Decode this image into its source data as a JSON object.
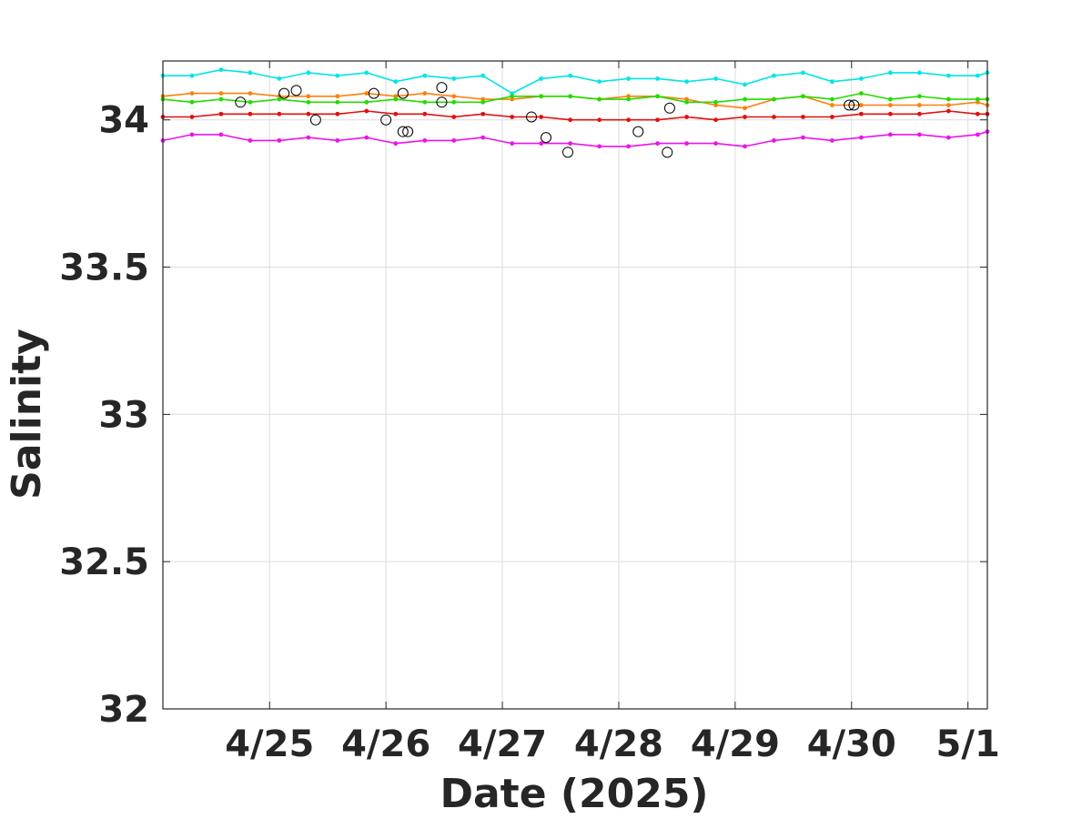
{
  "chart_data": {
    "type": "line",
    "title": "",
    "xlabel": "Date (2025)",
    "ylabel": "Salinity",
    "x_range": [
      "2025-04-24 02:00",
      "2025-05-01 04:00"
    ],
    "ylim": [
      32,
      34.2
    ],
    "grid": true,
    "x_ticks": [
      {
        "x": "2025-04-25",
        "label": "4/25"
      },
      {
        "x": "2025-04-26",
        "label": "4/26"
      },
      {
        "x": "2025-04-27",
        "label": "4/27"
      },
      {
        "x": "2025-04-28",
        "label": "4/28"
      },
      {
        "x": "2025-04-29",
        "label": "4/29"
      },
      {
        "x": "2025-04-30",
        "label": "4/30"
      },
      {
        "x": "2025-05-01",
        "label": "5/1"
      }
    ],
    "y_ticks": [
      {
        "y": 32,
        "label": "32"
      },
      {
        "y": 32.5,
        "label": "32.5"
      },
      {
        "y": 33,
        "label": "33"
      },
      {
        "y": 33.5,
        "label": "33.5"
      },
      {
        "y": 34,
        "label": "34"
      }
    ],
    "series": [
      {
        "color": "#00e5e5",
        "x": [
          "2025-04-24 02:00",
          "2025-04-24 08:00",
          "2025-04-24 14:00",
          "2025-04-24 20:00",
          "2025-04-25 02:00",
          "2025-04-25 08:00",
          "2025-04-25 14:00",
          "2025-04-25 20:00",
          "2025-04-26 02:00",
          "2025-04-26 08:00",
          "2025-04-26 14:00",
          "2025-04-26 20:00",
          "2025-04-27 02:00",
          "2025-04-27 08:00",
          "2025-04-27 14:00",
          "2025-04-27 20:00",
          "2025-04-28 02:00",
          "2025-04-28 08:00",
          "2025-04-28 14:00",
          "2025-04-28 20:00",
          "2025-04-29 02:00",
          "2025-04-29 08:00",
          "2025-04-29 14:00",
          "2025-04-29 20:00",
          "2025-04-30 02:00",
          "2025-04-30 08:00",
          "2025-04-30 14:00",
          "2025-04-30 20:00",
          "2025-05-01 02:00",
          "2025-05-01 04:00"
        ],
        "values": [
          34.15,
          34.15,
          34.17,
          34.16,
          34.14,
          34.16,
          34.15,
          34.16,
          34.13,
          34.15,
          34.14,
          34.15,
          34.09,
          34.14,
          34.15,
          34.13,
          34.14,
          34.14,
          34.13,
          34.14,
          34.12,
          34.15,
          34.16,
          34.13,
          34.14,
          34.16,
          34.16,
          34.15,
          34.15,
          34.16
        ]
      },
      {
        "color": "#ff7f0e",
        "x": [
          "2025-04-24 02:00",
          "2025-04-24 08:00",
          "2025-04-24 14:00",
          "2025-04-24 20:00",
          "2025-04-25 02:00",
          "2025-04-25 08:00",
          "2025-04-25 14:00",
          "2025-04-25 20:00",
          "2025-04-26 02:00",
          "2025-04-26 08:00",
          "2025-04-26 14:00",
          "2025-04-26 20:00",
          "2025-04-27 02:00",
          "2025-04-27 08:00",
          "2025-04-27 14:00",
          "2025-04-27 20:00",
          "2025-04-28 02:00",
          "2025-04-28 08:00",
          "2025-04-28 14:00",
          "2025-04-28 20:00",
          "2025-04-29 02:00",
          "2025-04-29 08:00",
          "2025-04-29 14:00",
          "2025-04-29 20:00",
          "2025-04-30 02:00",
          "2025-04-30 08:00",
          "2025-04-30 14:00",
          "2025-04-30 20:00",
          "2025-05-01 02:00",
          "2025-05-01 04:00"
        ],
        "values": [
          34.08,
          34.09,
          34.09,
          34.09,
          34.08,
          34.08,
          34.08,
          34.09,
          34.08,
          34.09,
          34.08,
          34.07,
          34.07,
          34.08,
          34.08,
          34.07,
          34.08,
          34.08,
          34.07,
          34.05,
          34.04,
          34.07,
          34.08,
          34.05,
          34.05,
          34.05,
          34.05,
          34.05,
          34.06,
          34.05
        ]
      },
      {
        "color": "#22dd00",
        "x": [
          "2025-04-24 02:00",
          "2025-04-24 08:00",
          "2025-04-24 14:00",
          "2025-04-24 20:00",
          "2025-04-25 02:00",
          "2025-04-25 08:00",
          "2025-04-25 14:00",
          "2025-04-25 20:00",
          "2025-04-26 02:00",
          "2025-04-26 08:00",
          "2025-04-26 14:00",
          "2025-04-26 20:00",
          "2025-04-27 02:00",
          "2025-04-27 08:00",
          "2025-04-27 14:00",
          "2025-04-27 20:00",
          "2025-04-28 02:00",
          "2025-04-28 08:00",
          "2025-04-28 14:00",
          "2025-04-28 20:00",
          "2025-04-29 02:00",
          "2025-04-29 08:00",
          "2025-04-29 14:00",
          "2025-04-29 20:00",
          "2025-04-30 02:00",
          "2025-04-30 08:00",
          "2025-04-30 14:00",
          "2025-04-30 20:00",
          "2025-05-01 02:00",
          "2025-05-01 04:00"
        ],
        "values": [
          34.07,
          34.06,
          34.07,
          34.06,
          34.07,
          34.06,
          34.06,
          34.06,
          34.07,
          34.06,
          34.06,
          34.06,
          34.08,
          34.08,
          34.08,
          34.07,
          34.07,
          34.08,
          34.06,
          34.06,
          34.07,
          34.07,
          34.08,
          34.07,
          34.09,
          34.07,
          34.08,
          34.07,
          34.07,
          34.07
        ]
      },
      {
        "color": "#e01010",
        "x": [
          "2025-04-24 02:00",
          "2025-04-24 08:00",
          "2025-04-24 14:00",
          "2025-04-24 20:00",
          "2025-04-25 02:00",
          "2025-04-25 08:00",
          "2025-04-25 14:00",
          "2025-04-25 20:00",
          "2025-04-26 02:00",
          "2025-04-26 08:00",
          "2025-04-26 14:00",
          "2025-04-26 20:00",
          "2025-04-27 02:00",
          "2025-04-27 08:00",
          "2025-04-27 14:00",
          "2025-04-27 20:00",
          "2025-04-28 02:00",
          "2025-04-28 08:00",
          "2025-04-28 14:00",
          "2025-04-28 20:00",
          "2025-04-29 02:00",
          "2025-04-29 08:00",
          "2025-04-29 14:00",
          "2025-04-29 20:00",
          "2025-04-30 02:00",
          "2025-04-30 08:00",
          "2025-04-30 14:00",
          "2025-04-30 20:00",
          "2025-05-01 02:00",
          "2025-05-01 04:00"
        ],
        "values": [
          34.01,
          34.01,
          34.02,
          34.02,
          34.02,
          34.02,
          34.02,
          34.03,
          34.02,
          34.02,
          34.01,
          34.02,
          34.01,
          34.01,
          34.0,
          34.0,
          34.0,
          34.0,
          34.01,
          34.0,
          34.01,
          34.01,
          34.01,
          34.01,
          34.02,
          34.02,
          34.02,
          34.03,
          34.02,
          34.02
        ]
      },
      {
        "color": "#ee11ee",
        "x": [
          "2025-04-24 02:00",
          "2025-04-24 08:00",
          "2025-04-24 14:00",
          "2025-04-24 20:00",
          "2025-04-25 02:00",
          "2025-04-25 08:00",
          "2025-04-25 14:00",
          "2025-04-25 20:00",
          "2025-04-26 02:00",
          "2025-04-26 08:00",
          "2025-04-26 14:00",
          "2025-04-26 20:00",
          "2025-04-27 02:00",
          "2025-04-27 08:00",
          "2025-04-27 14:00",
          "2025-04-27 20:00",
          "2025-04-28 02:00",
          "2025-04-28 08:00",
          "2025-04-28 14:00",
          "2025-04-28 20:00",
          "2025-04-29 02:00",
          "2025-04-29 08:00",
          "2025-04-29 14:00",
          "2025-04-29 20:00",
          "2025-04-30 02:00",
          "2025-04-30 08:00",
          "2025-04-30 14:00",
          "2025-04-30 20:00",
          "2025-05-01 02:00",
          "2025-05-01 04:00"
        ],
        "values": [
          33.93,
          33.95,
          33.95,
          33.93,
          33.93,
          33.94,
          33.93,
          33.94,
          33.92,
          33.93,
          33.93,
          33.94,
          33.92,
          33.92,
          33.92,
          33.91,
          33.91,
          33.92,
          33.92,
          33.92,
          33.91,
          33.93,
          33.94,
          33.93,
          33.94,
          33.95,
          33.95,
          33.94,
          33.95,
          33.96
        ]
      }
    ],
    "flagged_points": [
      {
        "x": "2025-04-24 18:00",
        "y": 34.06
      },
      {
        "x": "2025-04-25 03:00",
        "y": 34.09
      },
      {
        "x": "2025-04-25 05:30",
        "y": 34.1
      },
      {
        "x": "2025-04-25 09:30",
        "y": 34.0
      },
      {
        "x": "2025-04-25 21:30",
        "y": 34.09
      },
      {
        "x": "2025-04-26 00:00",
        "y": 34.0
      },
      {
        "x": "2025-04-26 03:30",
        "y": 34.09
      },
      {
        "x": "2025-04-26 03:30",
        "y": 33.96
      },
      {
        "x": "2025-04-26 04:30",
        "y": 33.96
      },
      {
        "x": "2025-04-26 11:30",
        "y": 34.11
      },
      {
        "x": "2025-04-26 11:30",
        "y": 34.06
      },
      {
        "x": "2025-04-27 06:00",
        "y": 34.01
      },
      {
        "x": "2025-04-27 09:00",
        "y": 33.94
      },
      {
        "x": "2025-04-27 13:30",
        "y": 33.89
      },
      {
        "x": "2025-04-28 04:00",
        "y": 33.96
      },
      {
        "x": "2025-04-28 10:00",
        "y": 33.89
      },
      {
        "x": "2025-04-28 10:30",
        "y": 34.04
      },
      {
        "x": "2025-04-29 23:30",
        "y": 34.05
      },
      {
        "x": "2025-04-30 00:30",
        "y": 34.05
      }
    ]
  }
}
